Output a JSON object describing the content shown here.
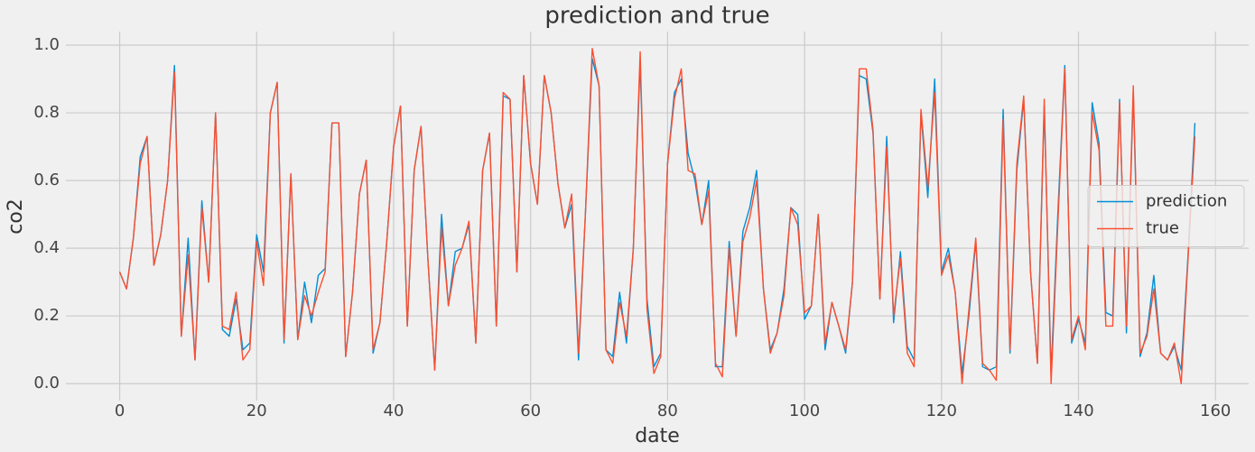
{
  "chart_data": {
    "type": "line",
    "title": "prediction and true",
    "xlabel": "date",
    "ylabel": "co2",
    "x": [
      0,
      1,
      2,
      3,
      4,
      5,
      6,
      7,
      8,
      9,
      10,
      11,
      12,
      13,
      14,
      15,
      16,
      17,
      18,
      19,
      20,
      21,
      22,
      23,
      24,
      25,
      26,
      27,
      28,
      29,
      30,
      31,
      32,
      33,
      34,
      35,
      36,
      37,
      38,
      39,
      40,
      41,
      42,
      43,
      44,
      45,
      46,
      47,
      48,
      49,
      50,
      51,
      52,
      53,
      54,
      55,
      56,
      57,
      58,
      59,
      60,
      61,
      62,
      63,
      64,
      65,
      66,
      67,
      68,
      69,
      70,
      71,
      72,
      73,
      74,
      75,
      76,
      77,
      78,
      79,
      80,
      81,
      82,
      83,
      84,
      85,
      86,
      87,
      88,
      89,
      90,
      91,
      92,
      93,
      94,
      95,
      96,
      97,
      98,
      99,
      100,
      101,
      102,
      103,
      104,
      105,
      106,
      107,
      108,
      109,
      110,
      111,
      112,
      113,
      114,
      115,
      116,
      117,
      118,
      119,
      120,
      121,
      122,
      123,
      124,
      125,
      126,
      127,
      128,
      129,
      130,
      131,
      132,
      133,
      134,
      135,
      136,
      137,
      138,
      139,
      140,
      141,
      142,
      143,
      144,
      145,
      146,
      147,
      148,
      149,
      150,
      151,
      152,
      153,
      154,
      155,
      156,
      157
    ],
    "series": [
      {
        "name": "prediction",
        "color": "#008fd5",
        "values": [
          0.33,
          0.28,
          0.43,
          0.67,
          0.73,
          0.35,
          0.44,
          0.6,
          0.94,
          0.14,
          0.43,
          0.07,
          0.54,
          0.3,
          0.8,
          0.16,
          0.14,
          0.25,
          0.1,
          0.12,
          0.44,
          0.33,
          0.8,
          0.89,
          0.12,
          0.62,
          0.13,
          0.3,
          0.18,
          0.32,
          0.34,
          0.77,
          0.77,
          0.08,
          0.27,
          0.56,
          0.66,
          0.09,
          0.18,
          0.42,
          0.7,
          0.82,
          0.17,
          0.63,
          0.76,
          0.37,
          0.04,
          0.5,
          0.23,
          0.39,
          0.4,
          0.47,
          0.12,
          0.63,
          0.74,
          0.17,
          0.85,
          0.84,
          0.33,
          0.91,
          0.65,
          0.53,
          0.91,
          0.8,
          0.59,
          0.46,
          0.53,
          0.07,
          0.5,
          0.96,
          0.88,
          0.1,
          0.08,
          0.27,
          0.12,
          0.4,
          0.95,
          0.25,
          0.05,
          0.09,
          0.65,
          0.86,
          0.9,
          0.68,
          0.6,
          0.47,
          0.6,
          0.05,
          0.05,
          0.42,
          0.14,
          0.45,
          0.52,
          0.63,
          0.28,
          0.1,
          0.15,
          0.28,
          0.52,
          0.5,
          0.19,
          0.23,
          0.5,
          0.1,
          0.24,
          0.17,
          0.09,
          0.3,
          0.91,
          0.9,
          0.74,
          0.25,
          0.73,
          0.18,
          0.39,
          0.11,
          0.07,
          0.8,
          0.55,
          0.9,
          0.33,
          0.4,
          0.27,
          0.03,
          0.2,
          0.42,
          0.05,
          0.04,
          0.05,
          0.81,
          0.09,
          0.63,
          0.84,
          0.33,
          0.06,
          0.82,
          0.03,
          0.51,
          0.94,
          0.12,
          0.19,
          0.12,
          0.83,
          0.71,
          0.21,
          0.2,
          0.84,
          0.15,
          0.86,
          0.08,
          0.15,
          0.32,
          0.09,
          0.07,
          0.11,
          0.04,
          0.38,
          0.77
        ]
      },
      {
        "name": "true",
        "color": "#fc4f30",
        "values": [
          0.33,
          0.28,
          0.43,
          0.65,
          0.73,
          0.35,
          0.44,
          0.6,
          0.92,
          0.14,
          0.38,
          0.07,
          0.52,
          0.3,
          0.8,
          0.17,
          0.16,
          0.27,
          0.07,
          0.1,
          0.42,
          0.29,
          0.8,
          0.89,
          0.13,
          0.62,
          0.13,
          0.26,
          0.2,
          0.27,
          0.33,
          0.77,
          0.77,
          0.08,
          0.27,
          0.56,
          0.66,
          0.1,
          0.18,
          0.42,
          0.7,
          0.82,
          0.17,
          0.63,
          0.76,
          0.37,
          0.04,
          0.46,
          0.23,
          0.35,
          0.4,
          0.48,
          0.12,
          0.63,
          0.74,
          0.17,
          0.86,
          0.84,
          0.33,
          0.91,
          0.65,
          0.53,
          0.91,
          0.8,
          0.59,
          0.46,
          0.56,
          0.09,
          0.5,
          0.99,
          0.88,
          0.1,
          0.06,
          0.24,
          0.14,
          0.4,
          0.98,
          0.22,
          0.03,
          0.08,
          0.65,
          0.84,
          0.93,
          0.63,
          0.62,
          0.47,
          0.57,
          0.06,
          0.02,
          0.4,
          0.14,
          0.42,
          0.49,
          0.6,
          0.28,
          0.09,
          0.15,
          0.26,
          0.52,
          0.47,
          0.21,
          0.23,
          0.5,
          0.12,
          0.24,
          0.17,
          0.1,
          0.3,
          0.93,
          0.93,
          0.75,
          0.25,
          0.7,
          0.2,
          0.37,
          0.09,
          0.05,
          0.81,
          0.58,
          0.86,
          0.32,
          0.38,
          0.27,
          0.0,
          0.22,
          0.43,
          0.06,
          0.04,
          0.01,
          0.78,
          0.1,
          0.65,
          0.85,
          0.33,
          0.06,
          0.84,
          0.0,
          0.48,
          0.93,
          0.13,
          0.2,
          0.1,
          0.8,
          0.69,
          0.17,
          0.17,
          0.83,
          0.17,
          0.88,
          0.09,
          0.14,
          0.28,
          0.09,
          0.07,
          0.12,
          0.0,
          0.37,
          0.73
        ]
      }
    ],
    "xlim": [
      -7.85,
      164.85
    ],
    "xticks": [
      0,
      20,
      40,
      60,
      80,
      100,
      120,
      140,
      160
    ],
    "ylim": [
      -0.05,
      1.04
    ],
    "yticks": [
      {
        "value": 0,
        "label": "0.0"
      },
      0.2,
      0.4,
      0.6,
      0.8,
      {
        "value": 1,
        "label": "1.0"
      }
    ],
    "grid": true,
    "legend": "center right"
  }
}
